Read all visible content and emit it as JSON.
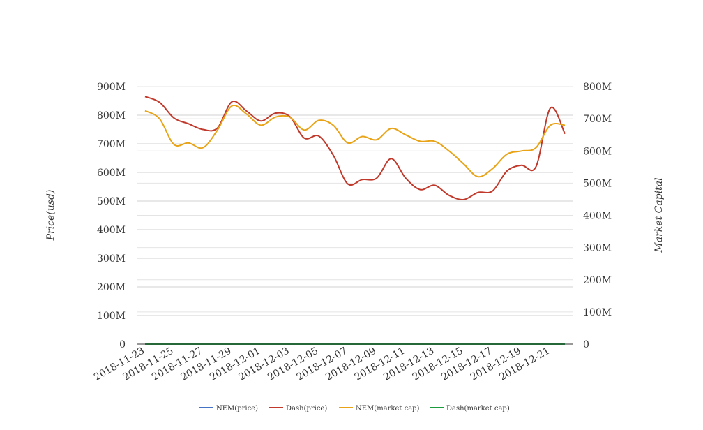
{
  "chart_data": {
    "type": "line",
    "title": "",
    "ylabel_left": "Price(usd)",
    "ylabel_right": "Market Capital",
    "ylim_left": [
      0,
      900000000
    ],
    "ylim_right": [
      0,
      800000000
    ],
    "yticks_left": [
      "0",
      "100M",
      "200M",
      "300M",
      "400M",
      "500M",
      "600M",
      "700M",
      "800M",
      "900M"
    ],
    "yticks_right": [
      "0",
      "100M",
      "200M",
      "300M",
      "400M",
      "500M",
      "600M",
      "700M",
      "800M"
    ],
    "x": [
      "2018-11-23",
      "2018-11-24",
      "2018-11-25",
      "2018-11-26",
      "2018-11-27",
      "2018-11-28",
      "2018-11-29",
      "2018-11-30",
      "2018-12-01",
      "2018-12-02",
      "2018-12-03",
      "2018-12-04",
      "2018-12-05",
      "2018-12-06",
      "2018-12-07",
      "2018-12-08",
      "2018-12-09",
      "2018-12-10",
      "2018-12-11",
      "2018-12-12",
      "2018-12-13",
      "2018-12-14",
      "2018-12-15",
      "2018-12-16",
      "2018-12-17",
      "2018-12-18",
      "2018-12-19",
      "2018-12-20",
      "2018-12-21",
      "2018-12-22"
    ],
    "xtick_labels": [
      "2018-11-23",
      "2018-11-25",
      "2018-11-27",
      "2018-11-29",
      "2018-12-01",
      "2018-12-03",
      "2018-12-05",
      "2018-12-07",
      "2018-12-09",
      "2018-12-11",
      "2018-12-13",
      "2018-12-15",
      "2018-12-17",
      "2018-12-19",
      "2018-12-21"
    ],
    "grid": true,
    "legend_position": "bottom",
    "series": [
      {
        "name": "NEM(price)",
        "axis": "left",
        "color": "#4472c4",
        "values": [
          0.1,
          0.1,
          0.1,
          0.1,
          0.1,
          0.1,
          0.1,
          0.1,
          0.1,
          0.1,
          0.1,
          0.1,
          0.1,
          0.1,
          0.1,
          0.1,
          0.1,
          0.1,
          0.1,
          0.1,
          0.1,
          0.1,
          0.1,
          0.1,
          0.1,
          0.1,
          0.1,
          0.1,
          0.1,
          0.1
        ]
      },
      {
        "name": "Dash(price)",
        "axis": "left",
        "color": "#c0392b",
        "values": [
          865000000,
          845000000,
          790000000,
          770000000,
          750000000,
          755000000,
          847000000,
          815000000,
          780000000,
          807000000,
          795000000,
          720000000,
          727000000,
          660000000,
          560000000,
          575000000,
          580000000,
          648000000,
          580000000,
          540000000,
          555000000,
          520000000,
          505000000,
          530000000,
          535000000,
          605000000,
          625000000,
          620000000,
          825000000,
          735000000
        ]
      },
      {
        "name": "NEM(market cap)",
        "axis": "right",
        "color": "#e8a317",
        "values": [
          725000000,
          700000000,
          620000000,
          625000000,
          610000000,
          665000000,
          740000000,
          715000000,
          680000000,
          705000000,
          705000000,
          665000000,
          695000000,
          680000000,
          625000000,
          645000000,
          635000000,
          670000000,
          650000000,
          630000000,
          630000000,
          600000000,
          560000000,
          520000000,
          545000000,
          590000000,
          600000000,
          610000000,
          680000000,
          680000000
        ]
      },
      {
        "name": "Dash(market cap)",
        "axis": "right",
        "color": "#1a9c3e",
        "values": [
          0.1,
          0.1,
          0.1,
          0.1,
          0.1,
          0.1,
          0.1,
          0.1,
          0.1,
          0.1,
          0.1,
          0.1,
          0.1,
          0.1,
          0.1,
          0.1,
          0.1,
          0.1,
          0.1,
          0.1,
          0.1,
          0.1,
          0.1,
          0.1,
          0.1,
          0.1,
          0.1,
          0.1,
          0.1,
          0.1
        ]
      }
    ]
  }
}
